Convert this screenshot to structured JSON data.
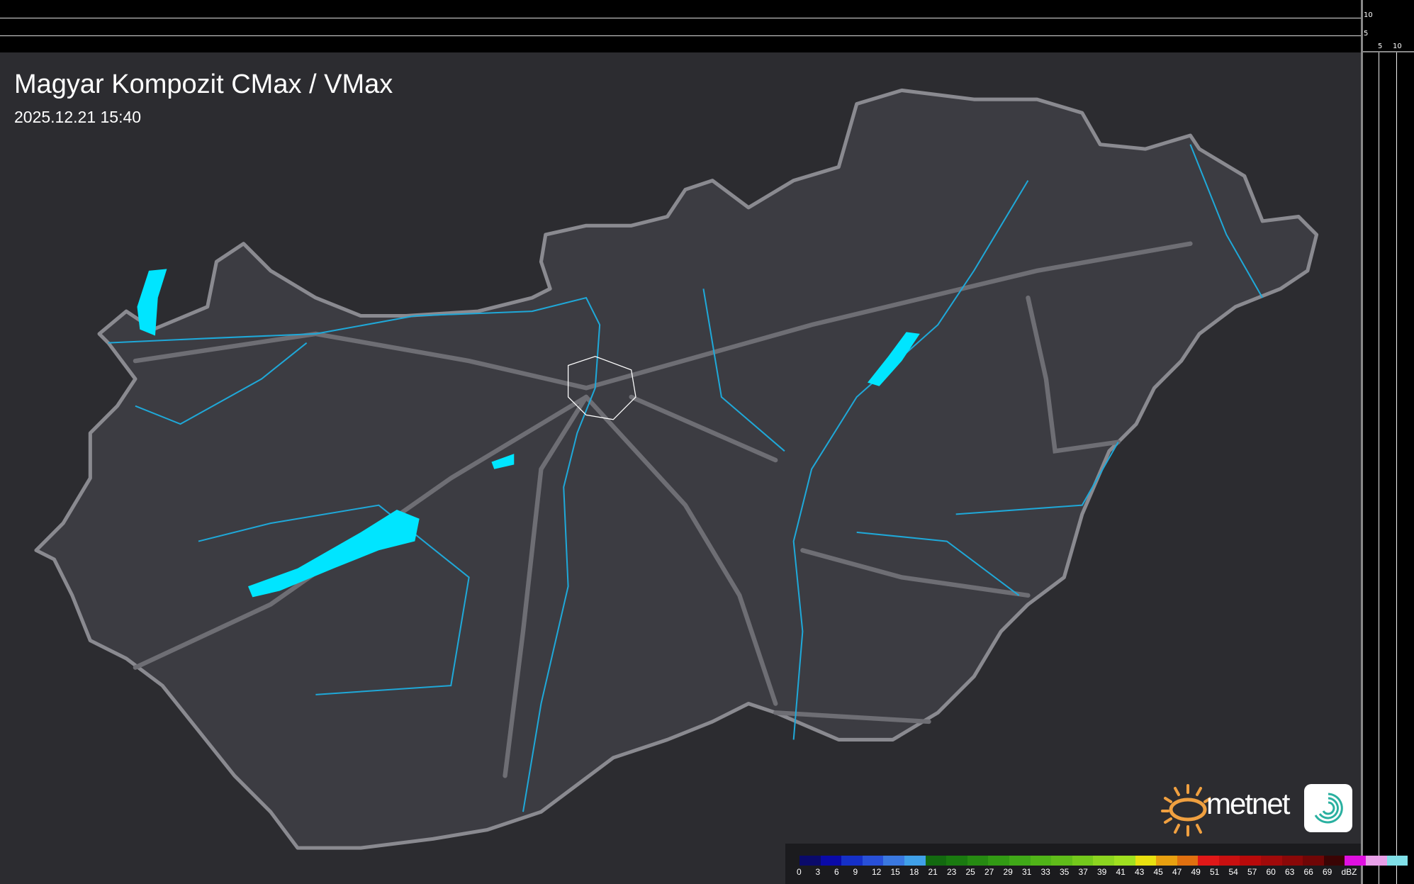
{
  "header": {
    "title": "Magyar Kompozit CMax / VMax",
    "timestamp": "2025.12.21 15:40"
  },
  "side_scale": {
    "vertical_ticks": [
      "10",
      "5"
    ],
    "horizontal_ticks": [
      "5",
      "10"
    ]
  },
  "legend": {
    "unit": "dBZ",
    "labels": [
      "0",
      "3",
      "6",
      "9",
      "12",
      "15",
      "18",
      "21",
      "23",
      "25",
      "27",
      "29",
      "31",
      "33",
      "35",
      "37",
      "39",
      "41",
      "43",
      "45",
      "47",
      "49",
      "51",
      "54",
      "57",
      "60",
      "63",
      "66",
      "69"
    ],
    "colors": [
      "#0a0a6a",
      "#0a0aa8",
      "#1530c8",
      "#2850d8",
      "#3a78e0",
      "#40a0e8",
      "#136a10",
      "#1a7a10",
      "#268a12",
      "#329a14",
      "#40a818",
      "#50b418",
      "#60bc1a",
      "#74c81c",
      "#8cd420",
      "#a0e020",
      "#e8e010",
      "#e8a010",
      "#e07010",
      "#e01818",
      "#c81010",
      "#b80a0a",
      "#a00a0a",
      "#8a0808",
      "#700606",
      "#3a0404",
      "#e010e0",
      "#e8a0e8",
      "#80e0e8"
    ]
  },
  "branding": {
    "logo_text": "metnet"
  },
  "colors": {
    "lake": "#00e5ff",
    "river": "#1fa8d8",
    "border": "#8a8a90",
    "road": "#6e6e74",
    "land": "#3c3c42",
    "background": "#2c2c30"
  }
}
